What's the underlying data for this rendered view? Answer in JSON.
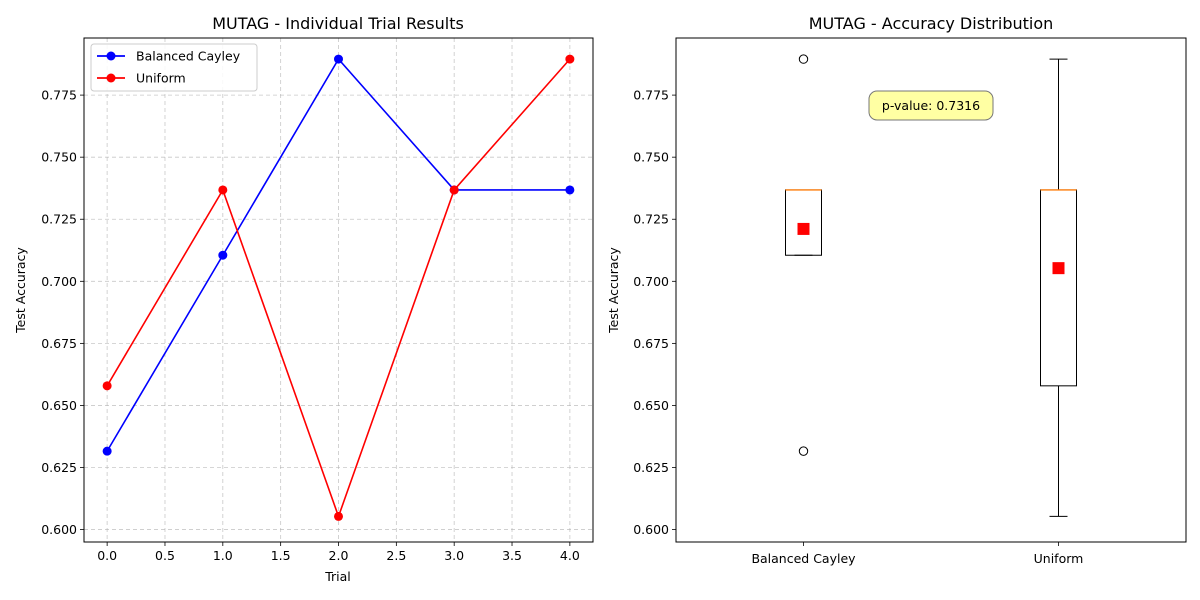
{
  "chart_data": [
    {
      "type": "line",
      "title": "MUTAG - Individual Trial Results",
      "xlabel": "Trial",
      "ylabel": "Test Accuracy",
      "x": [
        0,
        1,
        2,
        3,
        4
      ],
      "xlim": [
        -0.2,
        4.2
      ],
      "ylim": [
        0.595,
        0.798
      ],
      "xticks": [
        "0.0",
        "0.5",
        "1.0",
        "1.5",
        "2.0",
        "2.5",
        "3.0",
        "3.5",
        "4.0"
      ],
      "yticks": [
        "0.600",
        "0.625",
        "0.650",
        "0.675",
        "0.700",
        "0.725",
        "0.750",
        "0.775"
      ],
      "grid": true,
      "legend_position": "top-left",
      "series": [
        {
          "name": "Balanced Cayley",
          "color": "#0000ff",
          "values": [
            0.6316,
            0.7105,
            0.7895,
            0.7368,
            0.7368
          ]
        },
        {
          "name": "Uniform",
          "color": "#ff0000",
          "values": [
            0.6579,
            0.7368,
            0.6053,
            0.7368,
            0.7895
          ]
        }
      ]
    },
    {
      "type": "box",
      "title": "MUTAG - Accuracy Distribution",
      "ylabel": "Test Accuracy",
      "categories": [
        "Balanced Cayley",
        "Uniform"
      ],
      "ylim": [
        0.595,
        0.798
      ],
      "yticks": [
        "0.600",
        "0.625",
        "0.650",
        "0.675",
        "0.700",
        "0.725",
        "0.750",
        "0.775"
      ],
      "grid": false,
      "annotation": "p-value: 0.7316",
      "median_color": "#ff7f0e",
      "mean_color": "#ff0000",
      "annotation_bg": "#ffff66",
      "boxes": [
        {
          "q1": 0.7105,
          "median": 0.7368,
          "q3": 0.7368,
          "whisker_low": 0.7105,
          "whisker_high": 0.7368,
          "mean": 0.7211,
          "outliers": [
            0.7895,
            0.6316
          ]
        },
        {
          "q1": 0.6579,
          "median": 0.7368,
          "q3": 0.7368,
          "whisker_low": 0.6053,
          "whisker_high": 0.7895,
          "mean": 0.7053,
          "outliers": []
        }
      ]
    }
  ]
}
